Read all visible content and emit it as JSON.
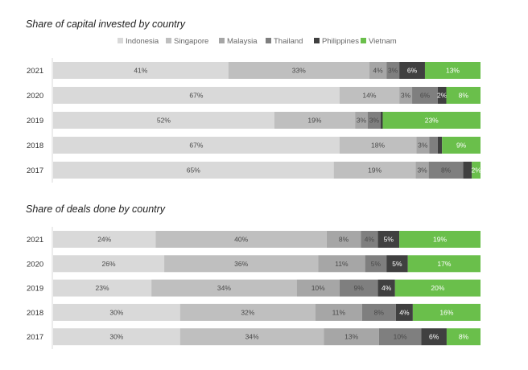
{
  "chart_data": [
    {
      "type": "bar",
      "orientation": "horizontal",
      "stacked": true,
      "normalized": true,
      "title": "Share of capital invested by country",
      "legend": "top",
      "categories": [
        "2021",
        "2020",
        "2019",
        "2018",
        "2017"
      ],
      "series": [
        {
          "name": "Indonesia",
          "color": "#d9d9d9",
          "values": [
            41,
            67,
            52,
            67,
            65
          ],
          "labels": [
            "41%",
            "67%",
            "52%",
            "67%",
            "65%"
          ]
        },
        {
          "name": "Singapore",
          "color": "#bfbfbf",
          "values": [
            33,
            14,
            19,
            18,
            19
          ],
          "labels": [
            "33%",
            "14%",
            "19%",
            "18%",
            "19%"
          ]
        },
        {
          "name": "Malaysia",
          "color": "#a6a6a6",
          "values": [
            4,
            3,
            3,
            3,
            3
          ],
          "labels": [
            "4%",
            "3%",
            "3%",
            "3%",
            "3%"
          ]
        },
        {
          "name": "Thailand",
          "color": "#7f7f7f",
          "values": [
            3,
            6,
            3,
            2,
            8
          ],
          "labels": [
            "3%",
            "6%",
            "3%",
            "",
            "8%"
          ]
        },
        {
          "name": "Philippines",
          "color": "#404040",
          "values": [
            6,
            2,
            0.5,
            1,
            2
          ],
          "labels": [
            "6%",
            "2%",
            "",
            "",
            ""
          ]
        },
        {
          "name": "Vietnam",
          "color": "#6abf4b",
          "values": [
            13,
            8,
            23,
            9,
            2
          ],
          "labels": [
            "13%",
            "8%",
            "23%",
            "9%",
            "2%"
          ]
        }
      ]
    },
    {
      "type": "bar",
      "orientation": "horizontal",
      "stacked": true,
      "normalized": true,
      "title": "Share of deals done by country",
      "categories": [
        "2021",
        "2020",
        "2019",
        "2018",
        "2017"
      ],
      "series": [
        {
          "name": "Indonesia",
          "color": "#d9d9d9",
          "values": [
            24,
            26,
            23,
            30,
            30
          ],
          "labels": [
            "24%",
            "26%",
            "23%",
            "30%",
            "30%"
          ]
        },
        {
          "name": "Singapore",
          "color": "#bfbfbf",
          "values": [
            40,
            36,
            34,
            32,
            34
          ],
          "labels": [
            "40%",
            "36%",
            "34%",
            "32%",
            "34%"
          ]
        },
        {
          "name": "Malaysia",
          "color": "#a6a6a6",
          "values": [
            8,
            11,
            10,
            11,
            13
          ],
          "labels": [
            "8%",
            "11%",
            "10%",
            "11%",
            "13%"
          ]
        },
        {
          "name": "Thailand",
          "color": "#7f7f7f",
          "values": [
            4,
            5,
            9,
            8,
            10
          ],
          "labels": [
            "4%",
            "5%",
            "9%",
            "8%",
            "10%"
          ]
        },
        {
          "name": "Philippines",
          "color": "#404040",
          "values": [
            5,
            5,
            4,
            4,
            6
          ],
          "labels": [
            "5%",
            "5%",
            "4%",
            "4%",
            "6%"
          ]
        },
        {
          "name": "Vietnam",
          "color": "#6abf4b",
          "values": [
            19,
            17,
            20,
            16,
            8
          ],
          "labels": [
            "19%",
            "17%",
            "20%",
            "16%",
            "8%"
          ]
        }
      ]
    }
  ]
}
